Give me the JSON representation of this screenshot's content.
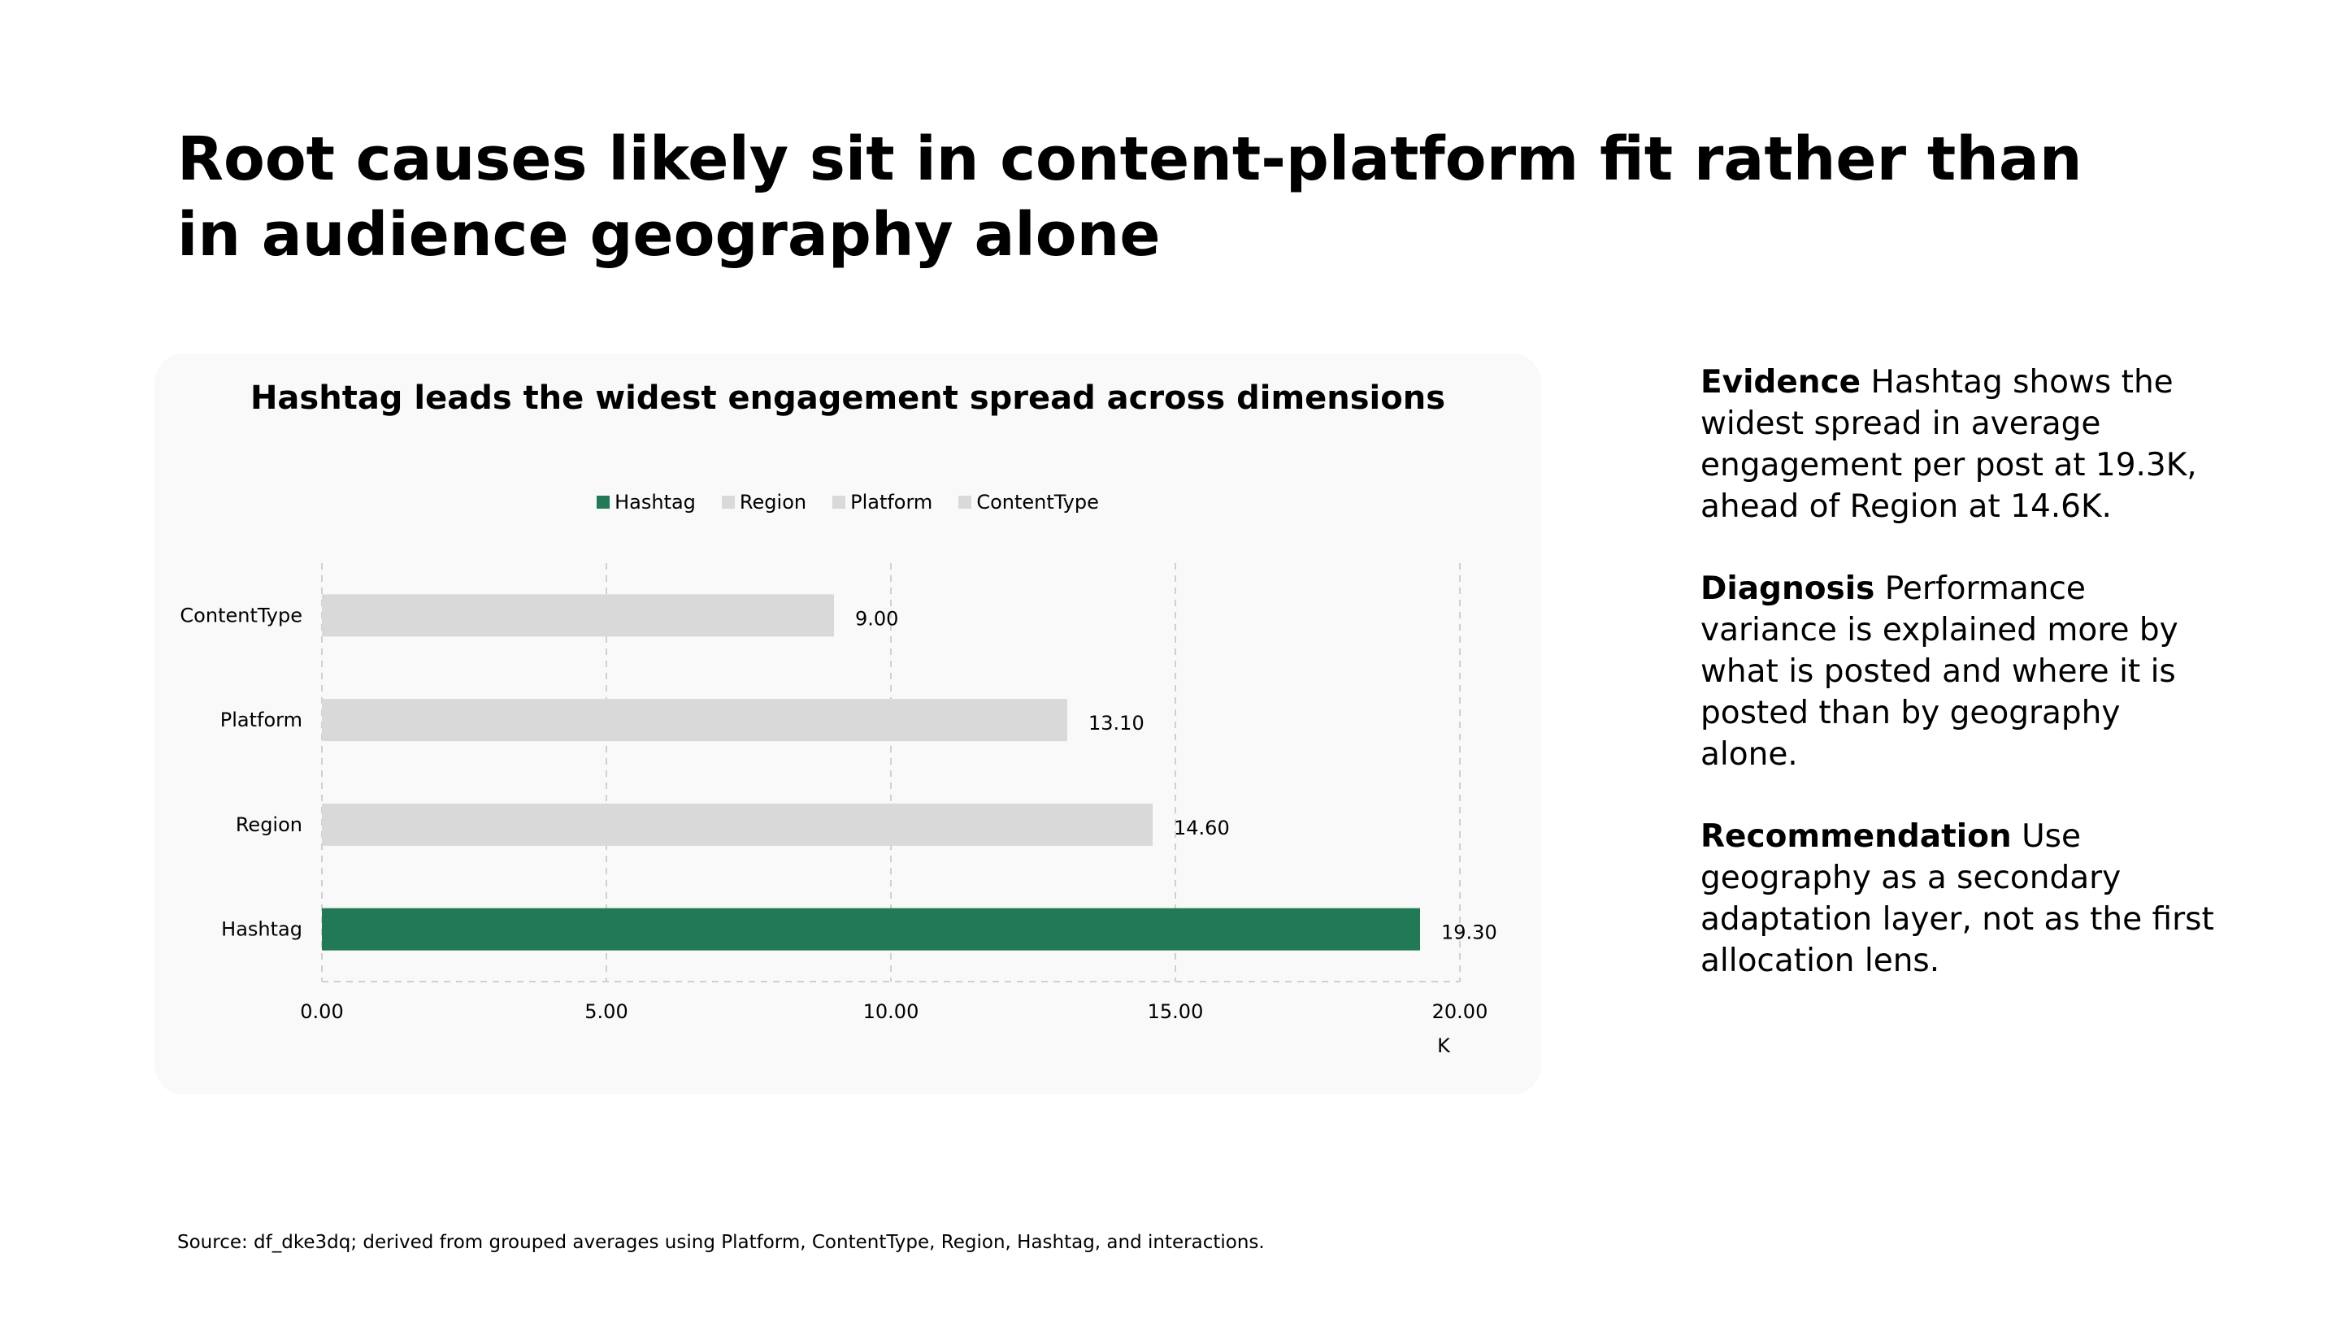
{
  "slide": {
    "title": "Root causes likely sit in content-platform fit rather than in audience geography alone",
    "source": "Source: df_dke3dq; derived from grouped averages using Platform, ContentType, Region, Hashtag, and interactions."
  },
  "panel": {
    "evidence_label": "Evidence",
    "evidence_text": " Hashtag shows the widest spread in average engagement per post at 19.3K, ahead of Region at 14.6K.",
    "diagnosis_label": "Diagnosis",
    "diagnosis_text": " Performance variance is explained more by what is posted and where it is posted than by geography alone.",
    "recommendation_label": "Recommendation",
    "recommendation_text": " Use geography as a secondary adaptation layer, not as the first allocation lens."
  },
  "chart_data": {
    "type": "bar",
    "orientation": "horizontal",
    "title": "Hashtag leads the widest engagement spread across dimensions",
    "categories": [
      "ContentType",
      "Platform",
      "Region",
      "Hashtag"
    ],
    "values": [
      9.0,
      13.1,
      14.6,
      19.3
    ],
    "data_labels": [
      "9.00",
      "13.10",
      "14.60",
      "19.30"
    ],
    "colors": [
      "#d9d9d9",
      "#d9d9d9",
      "#d9d9d9",
      "#217a55"
    ],
    "legend": [
      {
        "name": "Hashtag",
        "color": "#217a55"
      },
      {
        "name": "Region",
        "color": "#d9d9d9"
      },
      {
        "name": "Platform",
        "color": "#d9d9d9"
      },
      {
        "name": "ContentType",
        "color": "#d9d9d9"
      }
    ],
    "legend_position": "top",
    "xlim": [
      0,
      20
    ],
    "xticks": [
      0,
      5,
      10,
      15,
      20
    ],
    "xtick_labels": [
      "0.00",
      "5.00",
      "10.00",
      "15.00",
      "20.00"
    ],
    "xlabel": "K",
    "ylabel": "",
    "grid": "vertical dashed"
  }
}
